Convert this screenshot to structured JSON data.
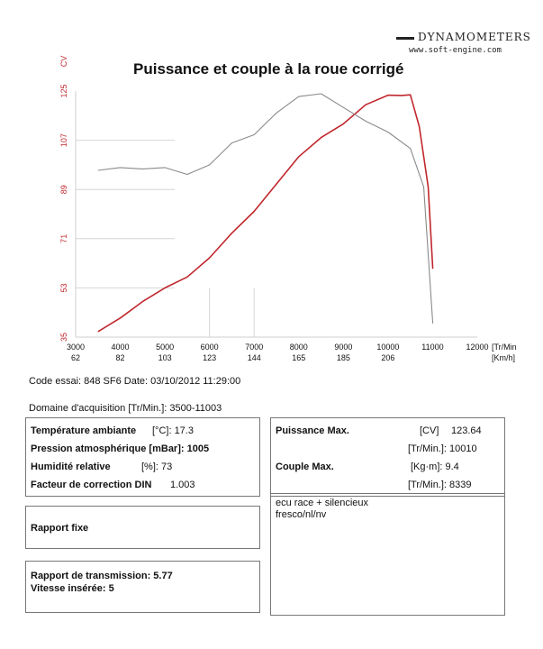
{
  "brand": {
    "name": "DYNAMOMETERS",
    "url": "www.soft-engine.com"
  },
  "chart_data": {
    "type": "line",
    "title": "Puissance et couple à la roue corrigé",
    "y_unit": "CV",
    "x_unit": "[Tr/Min",
    "x_unit2": "[Km/h]",
    "xlim": [
      3000,
      12000
    ],
    "ylim": [
      35,
      125
    ],
    "x_ticks": [
      {
        "rpm": "3000",
        "kmh": "62"
      },
      {
        "rpm": "4000",
        "kmh": "82"
      },
      {
        "rpm": "5000",
        "kmh": "103"
      },
      {
        "rpm": "6000",
        "kmh": "123"
      },
      {
        "rpm": "7000",
        "kmh": "144"
      },
      {
        "rpm": "8000",
        "kmh": "165"
      },
      {
        "rpm": "9000",
        "kmh": "185"
      },
      {
        "rpm": "10000",
        "kmh": "206"
      },
      {
        "rpm": "11000",
        "kmh": ""
      },
      {
        "rpm": "12000",
        "kmh": ""
      }
    ],
    "y_ticks": [
      "35",
      "53",
      "71",
      "89",
      "107",
      "125"
    ],
    "series": [
      {
        "name": "Puissance",
        "color": "#c0272d",
        "x": [
          3500,
          4000,
          4500,
          5000,
          5500,
          6000,
          6500,
          7000,
          7500,
          8000,
          8500,
          9000,
          9500,
          10000,
          10300,
          10500,
          10700,
          10900,
          11003
        ],
        "y": [
          37,
          42,
          48,
          53,
          57,
          64,
          73,
          81,
          91,
          101,
          108,
          113,
          120,
          123.5,
          123.4,
          123.6,
          112,
          90,
          60
        ]
      },
      {
        "name": "Couple",
        "color": "#8a8a8a",
        "x": [
          3500,
          4000,
          4500,
          5000,
          5500,
          6000,
          6500,
          7000,
          7500,
          8000,
          8500,
          9000,
          9500,
          10000,
          10500,
          10800,
          11003
        ],
        "y": [
          96,
          97,
          96.5,
          97,
          94.5,
          98,
          106,
          109,
          117,
          123,
          124,
          119,
          114,
          110,
          104,
          90,
          40
        ]
      }
    ]
  },
  "info": {
    "code_essai": "Code essai: 848 SF6  Date: 03/10/2012 11:29:00",
    "domaine": "Domaine d'acquisition [Tr/Min.]: 3500-11003"
  },
  "params": {
    "temp_label": "Température ambiante",
    "temp_value": "[°C]: 17.3",
    "pression_label": "Pression atmosphérique [mBar]: 1005",
    "humidite_label": "Humidité relative",
    "humidite_value": "[%]: 73",
    "facteur_label": "Facteur de correction DIN",
    "facteur_value": "1.003"
  },
  "results": {
    "puissance_label": "Puissance Max.",
    "puissance_unit": "[CV]",
    "puissance_value": "123.64",
    "puissance_rpm": "[Tr/Min.]: 10010",
    "couple_label": "Couple Max.",
    "couple_unit": "[Kg·m]: 9.4",
    "couple_rpm": "[Tr/Min.]: 8339"
  },
  "rapport": {
    "type": "Rapport fixe",
    "transmission": "Rapport de transmission: 5.77",
    "vitesse": "Vitesse insérée: 5"
  },
  "notes": {
    "line1": "ecu race + silencieux",
    "line2": "fresco/nl/nv"
  }
}
